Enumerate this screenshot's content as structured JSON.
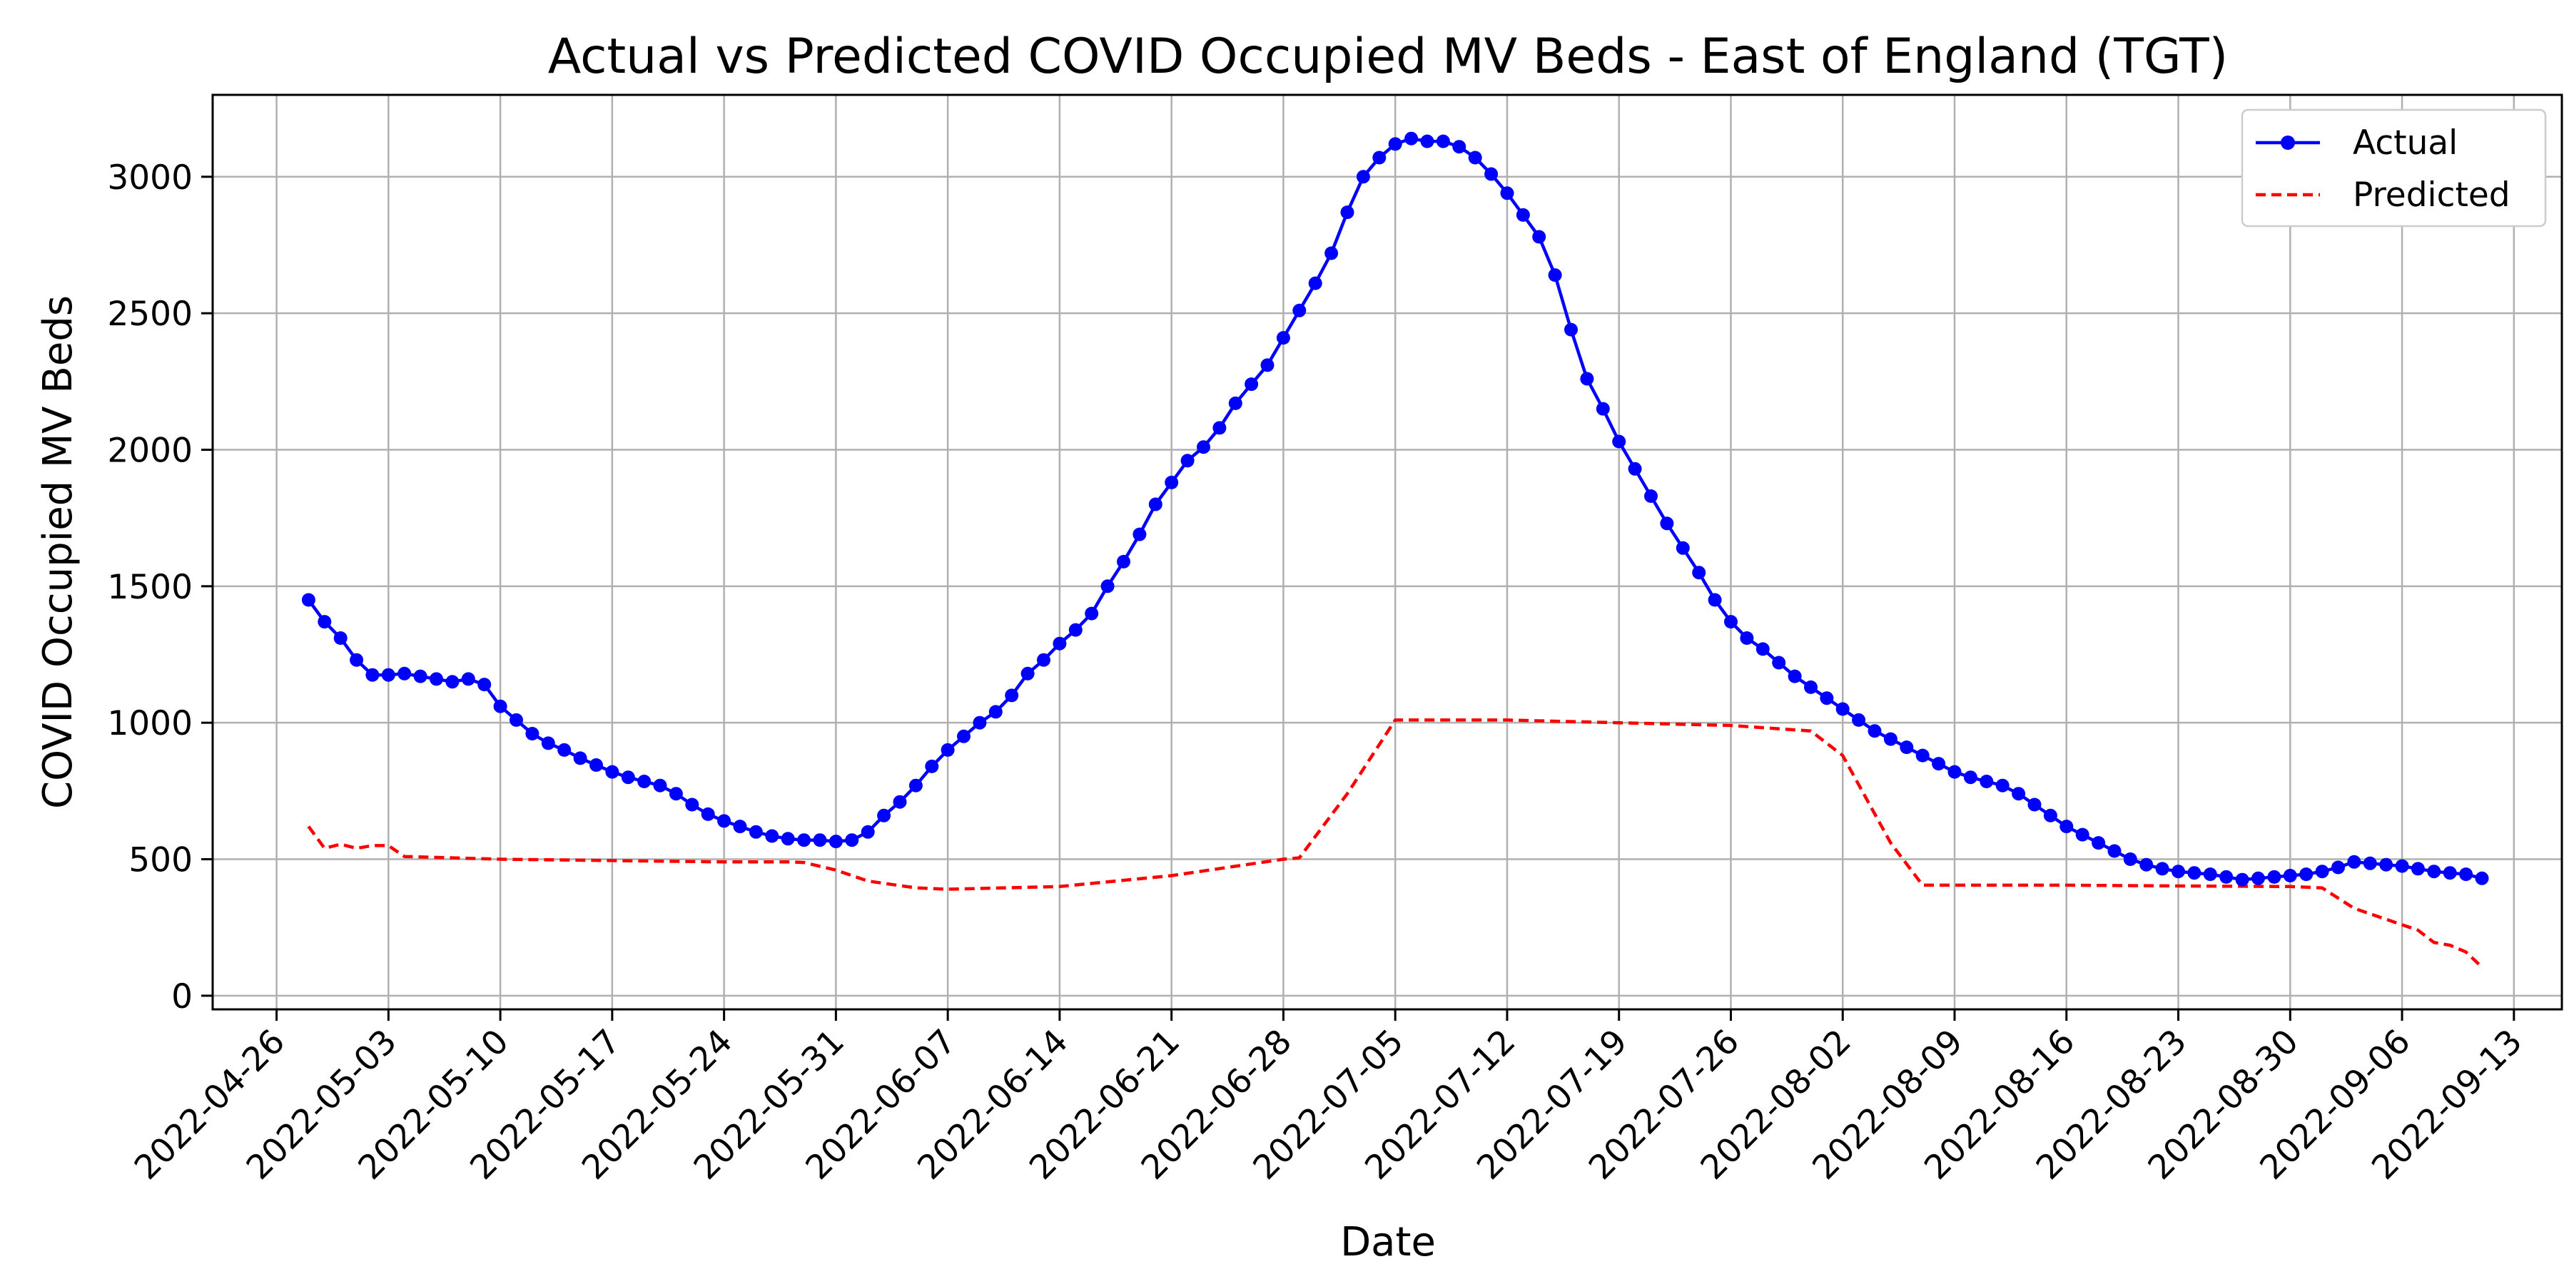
{
  "chart_data": {
    "type": "line",
    "title": "Actual vs Predicted COVID Occupied MV Beds - East of England (TGT)",
    "xlabel": "Date",
    "ylabel": "COVID Occupied MV Beds",
    "x_type": "date",
    "x_ticks": [
      "2022-04-26",
      "2022-05-03",
      "2022-05-10",
      "2022-05-17",
      "2022-05-24",
      "2022-05-31",
      "2022-06-07",
      "2022-06-14",
      "2022-06-21",
      "2022-06-28",
      "2022-07-05",
      "2022-07-12",
      "2022-07-19",
      "2022-07-26",
      "2022-08-02",
      "2022-08-09",
      "2022-08-16",
      "2022-08-23",
      "2022-08-30",
      "2022-09-06",
      "2022-09-13"
    ],
    "y_ticks": [
      0,
      500,
      1000,
      1500,
      2000,
      2500,
      3000
    ],
    "ylim": [
      -50,
      3300
    ],
    "xlim": [
      "2022-04-22",
      "2022-09-16"
    ],
    "grid": true,
    "legend_position": "top-right",
    "colors": {
      "actual": "#0000ff",
      "predicted": "#ff0000"
    },
    "series": [
      {
        "name": "Actual",
        "style": "solid-with-circle-markers",
        "points": [
          [
            "2022-04-28",
            1450
          ],
          [
            "2022-04-29",
            1370
          ],
          [
            "2022-04-30",
            1310
          ],
          [
            "2022-05-01",
            1230
          ],
          [
            "2022-05-02",
            1175
          ],
          [
            "2022-05-03",
            1175
          ],
          [
            "2022-05-04",
            1180
          ],
          [
            "2022-05-05",
            1170
          ],
          [
            "2022-05-06",
            1160
          ],
          [
            "2022-05-07",
            1150
          ],
          [
            "2022-05-08",
            1160
          ],
          [
            "2022-05-09",
            1140
          ],
          [
            "2022-05-10",
            1060
          ],
          [
            "2022-05-11",
            1010
          ],
          [
            "2022-05-12",
            960
          ],
          [
            "2022-05-13",
            925
          ],
          [
            "2022-05-14",
            900
          ],
          [
            "2022-05-15",
            870
          ],
          [
            "2022-05-16",
            845
          ],
          [
            "2022-05-17",
            820
          ],
          [
            "2022-05-18",
            800
          ],
          [
            "2022-05-19",
            785
          ],
          [
            "2022-05-20",
            770
          ],
          [
            "2022-05-21",
            740
          ],
          [
            "2022-05-22",
            700
          ],
          [
            "2022-05-23",
            665
          ],
          [
            "2022-05-24",
            640
          ],
          [
            "2022-05-25",
            620
          ],
          [
            "2022-05-26",
            600
          ],
          [
            "2022-05-27",
            585
          ],
          [
            "2022-05-28",
            575
          ],
          [
            "2022-05-29",
            570
          ],
          [
            "2022-05-30",
            570
          ],
          [
            "2022-05-31",
            565
          ],
          [
            "2022-06-01",
            570
          ],
          [
            "2022-06-02",
            600
          ],
          [
            "2022-06-03",
            660
          ],
          [
            "2022-06-04",
            710
          ],
          [
            "2022-06-05",
            770
          ],
          [
            "2022-06-06",
            840
          ],
          [
            "2022-06-07",
            900
          ],
          [
            "2022-06-08",
            950
          ],
          [
            "2022-06-09",
            1000
          ],
          [
            "2022-06-10",
            1040
          ],
          [
            "2022-06-11",
            1100
          ],
          [
            "2022-06-12",
            1180
          ],
          [
            "2022-06-13",
            1230
          ],
          [
            "2022-06-14",
            1290
          ],
          [
            "2022-06-15",
            1340
          ],
          [
            "2022-06-16",
            1400
          ],
          [
            "2022-06-17",
            1500
          ],
          [
            "2022-06-18",
            1590
          ],
          [
            "2022-06-19",
            1690
          ],
          [
            "2022-06-20",
            1800
          ],
          [
            "2022-06-21",
            1880
          ],
          [
            "2022-06-22",
            1960
          ],
          [
            "2022-06-23",
            2010
          ],
          [
            "2022-06-24",
            2080
          ],
          [
            "2022-06-25",
            2170
          ],
          [
            "2022-06-26",
            2240
          ],
          [
            "2022-06-27",
            2310
          ],
          [
            "2022-06-28",
            2410
          ],
          [
            "2022-06-29",
            2510
          ],
          [
            "2022-06-30",
            2610
          ],
          [
            "2022-07-01",
            2720
          ],
          [
            "2022-07-02",
            2870
          ],
          [
            "2022-07-03",
            3000
          ],
          [
            "2022-07-04",
            3070
          ],
          [
            "2022-07-05",
            3120
          ],
          [
            "2022-07-06",
            3140
          ],
          [
            "2022-07-07",
            3130
          ],
          [
            "2022-07-08",
            3130
          ],
          [
            "2022-07-09",
            3110
          ],
          [
            "2022-07-10",
            3070
          ],
          [
            "2022-07-11",
            3010
          ],
          [
            "2022-07-12",
            2940
          ],
          [
            "2022-07-13",
            2860
          ],
          [
            "2022-07-14",
            2780
          ],
          [
            "2022-07-15",
            2640
          ],
          [
            "2022-07-16",
            2440
          ],
          [
            "2022-07-17",
            2260
          ],
          [
            "2022-07-18",
            2150
          ],
          [
            "2022-07-19",
            2030
          ],
          [
            "2022-07-20",
            1930
          ],
          [
            "2022-07-21",
            1830
          ],
          [
            "2022-07-22",
            1730
          ],
          [
            "2022-07-23",
            1640
          ],
          [
            "2022-07-24",
            1550
          ],
          [
            "2022-07-25",
            1450
          ],
          [
            "2022-07-26",
            1370
          ],
          [
            "2022-07-27",
            1310
          ],
          [
            "2022-07-28",
            1270
          ],
          [
            "2022-07-29",
            1220
          ],
          [
            "2022-07-30",
            1170
          ],
          [
            "2022-07-31",
            1130
          ],
          [
            "2022-08-01",
            1090
          ],
          [
            "2022-08-02",
            1050
          ],
          [
            "2022-08-03",
            1010
          ],
          [
            "2022-08-04",
            970
          ],
          [
            "2022-08-05",
            940
          ],
          [
            "2022-08-06",
            910
          ],
          [
            "2022-08-07",
            880
          ],
          [
            "2022-08-08",
            850
          ],
          [
            "2022-08-09",
            820
          ],
          [
            "2022-08-10",
            800
          ],
          [
            "2022-08-11",
            785
          ],
          [
            "2022-08-12",
            770
          ],
          [
            "2022-08-13",
            740
          ],
          [
            "2022-08-14",
            700
          ],
          [
            "2022-08-15",
            660
          ],
          [
            "2022-08-16",
            620
          ],
          [
            "2022-08-17",
            590
          ],
          [
            "2022-08-18",
            560
          ],
          [
            "2022-08-19",
            530
          ],
          [
            "2022-08-20",
            500
          ],
          [
            "2022-08-21",
            480
          ],
          [
            "2022-08-22",
            465
          ],
          [
            "2022-08-23",
            455
          ],
          [
            "2022-08-24",
            450
          ],
          [
            "2022-08-25",
            445
          ],
          [
            "2022-08-26",
            435
          ],
          [
            "2022-08-27",
            425
          ],
          [
            "2022-08-28",
            430
          ],
          [
            "2022-08-29",
            435
          ],
          [
            "2022-08-30",
            440
          ],
          [
            "2022-08-31",
            445
          ],
          [
            "2022-09-01",
            455
          ],
          [
            "2022-09-02",
            470
          ],
          [
            "2022-09-03",
            490
          ],
          [
            "2022-09-04",
            485
          ],
          [
            "2022-09-05",
            480
          ],
          [
            "2022-09-06",
            475
          ],
          [
            "2022-09-07",
            465
          ],
          [
            "2022-09-08",
            455
          ],
          [
            "2022-09-09",
            450
          ],
          [
            "2022-09-10",
            445
          ],
          [
            "2022-09-11",
            430
          ]
        ]
      },
      {
        "name": "Predicted",
        "style": "dashed",
        "points": [
          [
            "2022-04-28",
            620
          ],
          [
            "2022-04-29",
            540
          ],
          [
            "2022-04-30",
            555
          ],
          [
            "2022-05-01",
            540
          ],
          [
            "2022-05-02",
            550
          ],
          [
            "2022-05-03",
            550
          ],
          [
            "2022-05-04",
            510
          ],
          [
            "2022-05-10",
            500
          ],
          [
            "2022-05-17",
            495
          ],
          [
            "2022-05-24",
            490
          ],
          [
            "2022-05-28",
            490
          ],
          [
            "2022-05-29",
            488
          ],
          [
            "2022-05-31",
            460
          ],
          [
            "2022-06-02",
            420
          ],
          [
            "2022-06-05",
            395
          ],
          [
            "2022-06-07",
            390
          ],
          [
            "2022-06-14",
            400
          ],
          [
            "2022-06-21",
            440
          ],
          [
            "2022-06-28",
            500
          ],
          [
            "2022-06-29",
            505
          ],
          [
            "2022-07-02",
            740
          ],
          [
            "2022-07-05",
            1010
          ],
          [
            "2022-07-12",
            1010
          ],
          [
            "2022-07-19",
            1000
          ],
          [
            "2022-07-26",
            990
          ],
          [
            "2022-07-31",
            970
          ],
          [
            "2022-08-02",
            880
          ],
          [
            "2022-08-05",
            560
          ],
          [
            "2022-08-07",
            405
          ],
          [
            "2022-08-09",
            405
          ],
          [
            "2022-08-16",
            405
          ],
          [
            "2022-08-23",
            402
          ],
          [
            "2022-08-30",
            400
          ],
          [
            "2022-09-01",
            395
          ],
          [
            "2022-09-03",
            320
          ],
          [
            "2022-09-06",
            260
          ],
          [
            "2022-09-07",
            240
          ],
          [
            "2022-09-08",
            195
          ],
          [
            "2022-09-09",
            185
          ],
          [
            "2022-09-10",
            160
          ],
          [
            "2022-09-11",
            105
          ]
        ]
      }
    ]
  }
}
